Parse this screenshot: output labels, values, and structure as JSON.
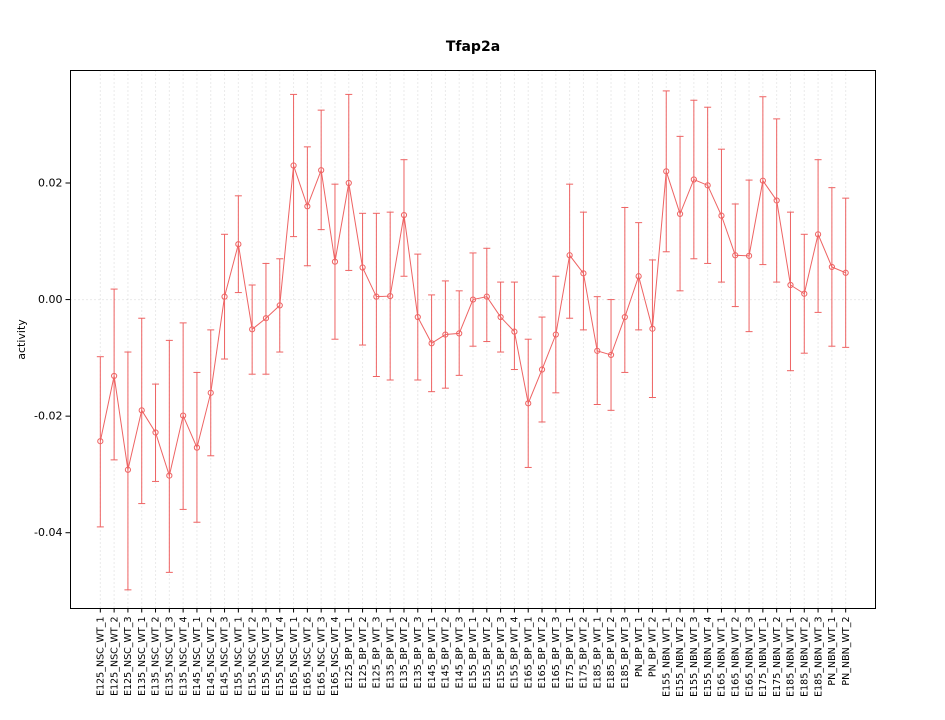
{
  "figure": {
    "background": "#ffffff",
    "axis_color": "#000000"
  },
  "chart_data": {
    "type": "scatter",
    "title": "Tfap2a",
    "xlabel": "",
    "ylabel": "activity",
    "ylim": [
      -0.053,
      0.0393
    ],
    "yticks": [
      0.02,
      0.0,
      -0.02,
      -0.04
    ],
    "ytick_labels": [
      "0.02",
      "0.00",
      "-0.02",
      "-0.04"
    ],
    "grid": "vertical dotted line at every category; dotted horizontal line at y=0",
    "legend_position": "none",
    "marker": "open-circle",
    "line_color": "#EE6363",
    "grid_color": "#D6D6D6",
    "categories": [
      "E125_NSC_WT_1",
      "E125_NSC_WT_2",
      "E125_NSC_WT_3",
      "E135_NSC_WT_1",
      "E135_NSC_WT_2",
      "E135_NSC_WT_3",
      "E135_NSC_WT_4",
      "E145_NSC_WT_1",
      "E145_NSC_WT_2",
      "E145_NSC_WT_3",
      "E155_NSC_WT_1",
      "E155_NSC_WT_2",
      "E155_NSC_WT_3",
      "E155_NSC_WT_4",
      "E165_NSC_WT_1",
      "E165_NSC_WT_2",
      "E165_NSC_WT_3",
      "E165_NSC_WT_4",
      "E125_BP_WT_1",
      "E125_BP_WT_2",
      "E125_BP_WT_3",
      "E135_BP_WT_1",
      "E135_BP_WT_2",
      "E135_BP_WT_3",
      "E145_BP_WT_1",
      "E145_BP_WT_2",
      "E145_BP_WT_3",
      "E155_BP_WT_1",
      "E155_BP_WT_2",
      "E155_BP_WT_3",
      "E155_BP_WT_4",
      "E165_BP_WT_1",
      "E165_BP_WT_2",
      "E165_BP_WT_3",
      "E175_BP_WT_1",
      "E175_BP_WT_2",
      "E185_BP_WT_1",
      "E185_BP_WT_2",
      "E185_BP_WT_3",
      "PN_BP_WT_1",
      "PN_BP_WT_2",
      "E155_NBN_WT_1",
      "E155_NBN_WT_2",
      "E155_NBN_WT_3",
      "E155_NBN_WT_4",
      "E165_NBN_WT_1",
      "E165_NBN_WT_2",
      "E165_NBN_WT_3",
      "E175_NBN_WT_1",
      "E175_NBN_WT_2",
      "E185_NBN_WT_1",
      "E185_NBN_WT_2",
      "E185_NBN_WT_3",
      "PN_NBN_WT_1",
      "PN_NBN_WT_2"
    ],
    "series": [
      {
        "name": "activity",
        "values": [
          -0.0243,
          -0.0131,
          -0.0292,
          -0.019,
          -0.0228,
          -0.0302,
          -0.0199,
          -0.0254,
          -0.016,
          0.0005,
          0.0095,
          -0.0051,
          -0.0032,
          -0.001,
          0.023,
          0.016,
          0.0222,
          0.0065,
          0.02,
          0.0055,
          0.0005,
          0.0006,
          0.0145,
          -0.003,
          -0.0075,
          -0.006,
          -0.0058,
          0.0,
          0.0005,
          -0.003,
          -0.0055,
          -0.0178,
          -0.012,
          -0.006,
          0.0076,
          0.0045,
          -0.0088,
          -0.0095,
          -0.003,
          0.004,
          -0.005,
          0.022,
          0.0147,
          0.0206,
          0.0196,
          0.0144,
          0.0076,
          0.0075,
          0.0204,
          0.017,
          0.0025,
          0.001,
          0.0112,
          0.0056,
          0.0046
        ],
        "error_low": [
          -0.039,
          -0.0275,
          -0.0498,
          -0.035,
          -0.0312,
          -0.0468,
          -0.036,
          -0.0382,
          -0.0268,
          -0.0102,
          0.0012,
          -0.0128,
          -0.0128,
          -0.009,
          0.0108,
          0.0058,
          0.012,
          -0.0068,
          0.005,
          -0.0078,
          -0.0132,
          -0.0138,
          0.004,
          -0.0138,
          -0.0158,
          -0.0152,
          -0.013,
          -0.008,
          -0.0072,
          -0.009,
          -0.012,
          -0.0288,
          -0.021,
          -0.016,
          -0.0032,
          -0.0052,
          -0.018,
          -0.019,
          -0.0125,
          -0.0052,
          -0.0168,
          0.0082,
          0.0015,
          0.007,
          0.0062,
          0.003,
          -0.0012,
          -0.0055,
          0.006,
          0.003,
          -0.0122,
          -0.0092,
          -0.0022,
          -0.008,
          -0.0082
        ],
        "error_high": [
          -0.0098,
          0.0018,
          -0.009,
          -0.0032,
          -0.0145,
          -0.007,
          -0.004,
          -0.0125,
          -0.0052,
          0.0112,
          0.0178,
          0.0025,
          0.0062,
          0.007,
          0.0352,
          0.0262,
          0.0325,
          0.0198,
          0.0352,
          0.0148,
          0.0148,
          0.015,
          0.024,
          0.0078,
          0.0008,
          0.0032,
          0.0015,
          0.008,
          0.0088,
          0.003,
          0.003,
          -0.0068,
          -0.003,
          0.004,
          0.0198,
          0.015,
          0.0005,
          0.0,
          0.0158,
          0.0132,
          0.0068,
          0.0358,
          0.028,
          0.0342,
          0.033,
          0.0258,
          0.0164,
          0.0205,
          0.0348,
          0.031,
          0.015,
          0.0112,
          0.024,
          0.0192,
          0.0174
        ]
      }
    ]
  }
}
